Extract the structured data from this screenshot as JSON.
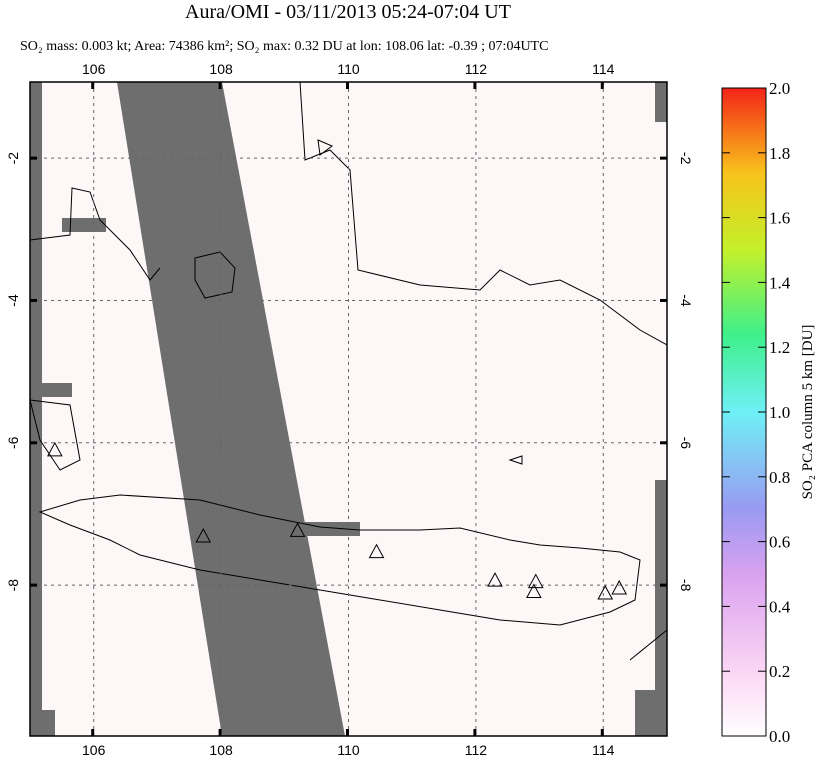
{
  "chart_data": {
    "type": "map",
    "title": "Aura/OMI - 03/11/2013 05:24-07:04 UT",
    "subtitle": "SO₂ mass: 0.003 kt; Area: 74386 km²; SO₂ max: 0.32 DU at lon: 108.06 lat: -0.39 ; 07:04UTC",
    "xlim": [
      105,
      115
    ],
    "xticks": [
      106,
      108,
      110,
      112,
      114
    ],
    "ylim": [
      -10.12,
      -0.93
    ],
    "yticks": [
      -2,
      -4,
      -6,
      -8
    ],
    "grid": true,
    "markers": {
      "lon": [
        105.39,
        107.72,
        109.2,
        110.44,
        112.3,
        112.94,
        112.91,
        114.03,
        114.25
      ],
      "lat": [
        -6.1,
        -7.31,
        -7.23,
        -7.53,
        -7.93,
        -7.95,
        -8.09,
        -8.11,
        -8.04
      ]
    },
    "colorbar": {
      "label": "SO₂ PCA column 5 km [DU]",
      "lim": [
        0,
        2
      ],
      "ticks": [
        {
          "value": 0,
          "label": "0.0"
        },
        0.2,
        0.4,
        0.6,
        0.8,
        {
          "value": 1,
          "label": "1.0"
        },
        1.2,
        1.4,
        1.6,
        1.8,
        {
          "value": 2,
          "label": "2.0"
        }
      ]
    }
  }
}
